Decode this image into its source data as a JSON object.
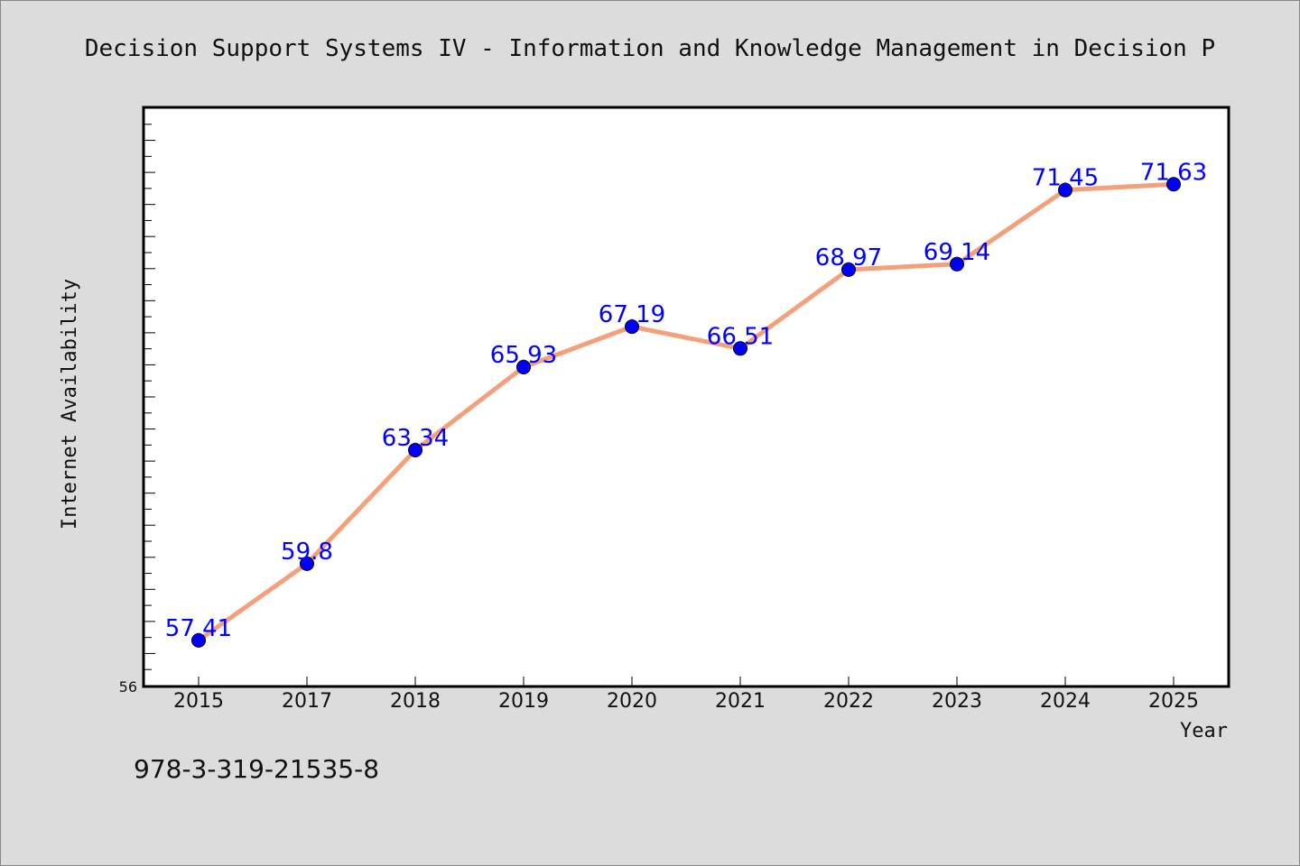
{
  "chart_data": {
    "type": "line",
    "title": "Decision Support Systems IV - Information and Knowledge Management in Decision P",
    "xlabel": "Year",
    "ylabel": "Internet Availability",
    "categories": [
      "2015",
      "2017",
      "2018",
      "2019",
      "2020",
      "2021",
      "2022",
      "2023",
      "2024",
      "2025"
    ],
    "series": [
      {
        "values": [
          57.41,
          59.8,
          63.34,
          65.93,
          67.19,
          66.51,
          68.97,
          69.14,
          71.45,
          71.63
        ],
        "labels": [
          "57.41",
          "59.8",
          "63.34",
          "65.93",
          "67.19",
          "66.51",
          "68.97",
          "69.14",
          "71.45",
          "71.63"
        ]
      }
    ],
    "ylim": [
      56,
      74
    ],
    "yticks_labeled": [
      "56"
    ],
    "grid": false,
    "legend": "none",
    "colors": {
      "background": "#dcdcdc",
      "plot_background": "#ffffff",
      "line": "#f4a07a",
      "marker": "#0000ff",
      "marker_edge": "#000000",
      "data_label": "#0000ff",
      "axes": "#000000"
    }
  },
  "footer": {
    "isbn": "978-3-319-21535-8"
  }
}
